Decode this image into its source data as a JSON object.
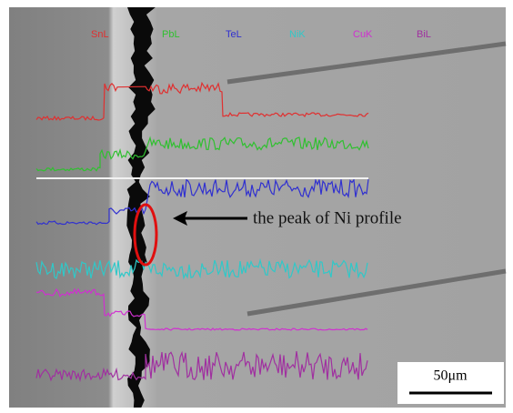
{
  "legend": [
    "SnL",
    "PbL",
    "TeL",
    "NiK",
    "CuK",
    "BiL"
  ],
  "annotation": "the peak of Ni profile",
  "scale_bar": "50μm"
}
